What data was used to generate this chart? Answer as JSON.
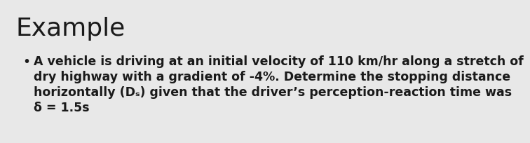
{
  "title": "Example",
  "title_fontsize": 26,
  "title_fontweight": "normal",
  "bullet_lines": [
    "A vehicle is driving at an initial velocity of 110 km/hr along a stretch of",
    "dry highway with a gradient of -4%. Determine the stopping distance",
    "horizontally (Dₛ) given that the driver’s perception-reaction time was",
    "δ = 1.5s"
  ],
  "bullet_fontsize": 12.5,
  "background_color": "#e8e8e8",
  "text_color": "#1a1a1a",
  "bullet_char": "•"
}
